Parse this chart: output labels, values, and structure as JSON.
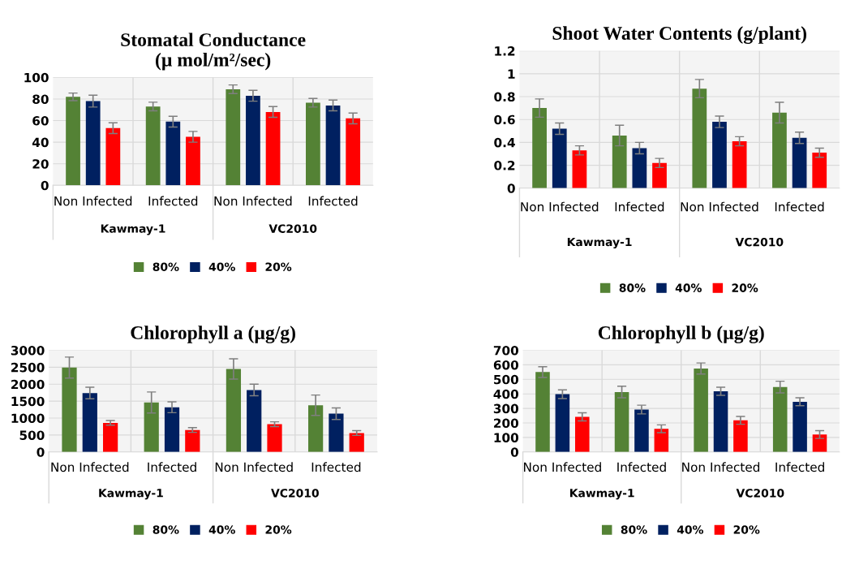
{
  "chart_data": [
    {
      "type": "bar",
      "title": "Stomatal Conductance\n(µ mol/m²/sec)",
      "categories": [
        "Non Infected",
        "Infected",
        "Non Infected",
        "Infected"
      ],
      "annotations": [
        "Kawmay-1",
        "VC2010"
      ],
      "ylim": [
        0,
        100
      ],
      "yticks": [
        0,
        20,
        40,
        60,
        80,
        100
      ],
      "grid": "y",
      "legend": "bottom",
      "series": [
        {
          "name": "80%",
          "color": "#548235",
          "values": [
            82,
            73,
            89,
            76.5
          ],
          "errors": [
            3.5,
            4,
            4,
            4
          ]
        },
        {
          "name": "40%",
          "color": "#002060",
          "values": [
            78,
            59,
            83,
            74
          ],
          "errors": [
            5.5,
            5,
            5,
            5
          ]
        },
        {
          "name": "20%",
          "color": "#ff0000",
          "values": [
            53,
            45,
            68,
            62
          ],
          "errors": [
            5,
            5,
            5,
            5
          ]
        }
      ]
    },
    {
      "type": "bar",
      "title": "Shoot Water Contents (g/plant)",
      "categories": [
        "Non Infected",
        "Infected",
        "Non Infected",
        "Infected"
      ],
      "annotations": [
        "Kawmay-1",
        "VC2010"
      ],
      "ylim": [
        0,
        1.2
      ],
      "yticks": [
        0,
        {
          "value": 0.2,
          "label": "0.2"
        },
        {
          "value": 0.4,
          "label": "0.4"
        },
        {
          "value": 0.6,
          "label": "0.6"
        },
        {
          "value": 0.8,
          "label": "0.8"
        },
        1,
        {
          "value": 1.2,
          "label": "1.2"
        }
      ],
      "grid": "y",
      "legend": "bottom",
      "series": [
        {
          "name": "80%",
          "color": "#548235",
          "values": [
            0.7,
            0.46,
            0.87,
            0.66
          ],
          "errors": [
            0.08,
            0.09,
            0.08,
            0.09
          ]
        },
        {
          "name": "40%",
          "color": "#002060",
          "values": [
            0.52,
            0.35,
            0.58,
            0.44
          ],
          "errors": [
            0.05,
            0.05,
            0.05,
            0.05
          ]
        },
        {
          "name": "20%",
          "color": "#ff0000",
          "values": [
            0.33,
            0.22,
            0.41,
            0.31
          ],
          "errors": [
            0.04,
            0.04,
            0.04,
            0.04
          ]
        }
      ]
    },
    {
      "type": "bar",
      "title": "Chlorophyll a (µg/g)",
      "categories": [
        "Non Infected",
        "Infected",
        "Non Infected",
        "Infected"
      ],
      "annotations": [
        "Kawmay-1",
        "VC2010"
      ],
      "ylim": [
        0,
        3000
      ],
      "yticks": [
        0,
        500,
        1000,
        1500,
        2000,
        2500,
        3000
      ],
      "grid": "y",
      "legend": "bottom",
      "series": [
        {
          "name": "80%",
          "color": "#548235",
          "values": [
            2490,
            1460,
            2450,
            1380
          ],
          "errors": [
            310,
            310,
            300,
            300
          ]
        },
        {
          "name": "40%",
          "color": "#002060",
          "values": [
            1740,
            1320,
            1830,
            1130
          ],
          "errors": [
            170,
            160,
            170,
            170
          ]
        },
        {
          "name": "20%",
          "color": "#ff0000",
          "values": [
            860,
            650,
            820,
            560
          ],
          "errors": [
            70,
            70,
            70,
            70
          ]
        }
      ]
    },
    {
      "type": "bar",
      "title": "Chlorophyll b (µg/g)",
      "categories": [
        "Non Infected",
        "Infected",
        "Non Infected",
        "Infected"
      ],
      "annotations": [
        "Kawmay-1",
        "VC2010"
      ],
      "ylim": [
        0,
        700
      ],
      "yticks": [
        0,
        100,
        200,
        300,
        400,
        500,
        600,
        700
      ],
      "grid": "y",
      "legend": "bottom",
      "series": [
        {
          "name": "80%",
          "color": "#548235",
          "values": [
            550,
            413,
            575,
            447
          ],
          "errors": [
            37,
            40,
            38,
            40
          ]
        },
        {
          "name": "40%",
          "color": "#002060",
          "values": [
            398,
            292,
            418,
            346
          ],
          "errors": [
            30,
            30,
            28,
            27
          ]
        },
        {
          "name": "20%",
          "color": "#ff0000",
          "values": [
            242,
            160,
            218,
            120
          ],
          "errors": [
            28,
            27,
            27,
            27
          ]
        }
      ]
    }
  ]
}
